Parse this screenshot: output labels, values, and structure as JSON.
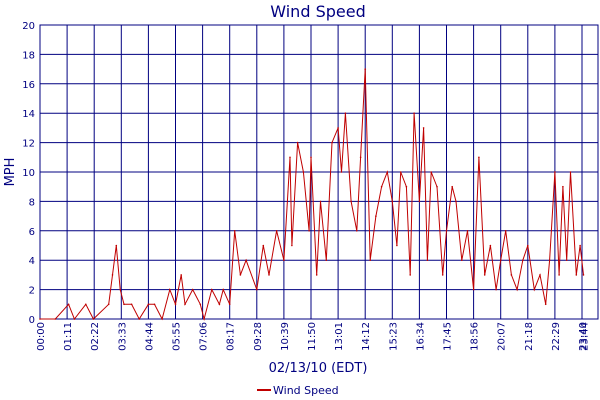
{
  "chart_data": {
    "type": "line",
    "title": "Wind Speed",
    "xlabel": "02/13/10 (EDT)",
    "ylabel": "MPH",
    "x_ticks": [
      "00:00",
      "01:11",
      "02:22",
      "03:33",
      "04:44",
      "05:55",
      "07:06",
      "08:17",
      "09:28",
      "10:39",
      "11:50",
      "13:01",
      "14:12",
      "15:23",
      "16:34",
      "17:45",
      "18:56",
      "20:07",
      "21:18",
      "22:29",
      "23:40",
      "23:44"
    ],
    "y_ticks": [
      0,
      2,
      4,
      6,
      8,
      10,
      12,
      14,
      16,
      18,
      20
    ],
    "xlim": [
      "00:00",
      "23:44"
    ],
    "ylim": [
      0,
      20
    ],
    "grid": true,
    "legend_position": "bottom-center",
    "series": [
      {
        "name": "Wind Speed",
        "color": "#c00000",
        "x": [
          "00:00",
          "00:40",
          "01:15",
          "01:30",
          "02:00",
          "02:20",
          "03:00",
          "03:10",
          "03:20",
          "03:30",
          "03:40",
          "04:00",
          "04:20",
          "04:44",
          "05:00",
          "05:20",
          "05:40",
          "05:55",
          "06:10",
          "06:20",
          "06:40",
          "07:00",
          "07:10",
          "07:30",
          "07:50",
          "08:00",
          "08:17",
          "08:30",
          "08:45",
          "09:00",
          "09:28",
          "09:45",
          "10:00",
          "10:20",
          "10:39",
          "10:55",
          "11:00",
          "11:15",
          "11:30",
          "11:45",
          "11:50",
          "12:05",
          "12:15",
          "12:30",
          "12:45",
          "13:01",
          "13:10",
          "13:20",
          "13:35",
          "13:50",
          "14:00",
          "14:12",
          "14:25",
          "14:40",
          "14:55",
          "15:10",
          "15:23",
          "15:35",
          "15:45",
          "16:00",
          "16:10",
          "16:20",
          "16:34",
          "16:45",
          "16:55",
          "17:05",
          "17:20",
          "17:35",
          "17:45",
          "18:00",
          "18:10",
          "18:25",
          "18:40",
          "18:56",
          "19:10",
          "19:25",
          "19:40",
          "19:55",
          "20:07",
          "20:20",
          "20:35",
          "20:50",
          "21:05",
          "21:18",
          "21:35",
          "21:50",
          "22:05",
          "22:15",
          "22:29",
          "22:40",
          "22:50",
          "23:00",
          "23:10",
          "23:25",
          "23:35",
          "23:44"
        ],
        "values": [
          0,
          0,
          1,
          0,
          1,
          0,
          1,
          3,
          5,
          2,
          1,
          1,
          0,
          1,
          1,
          0,
          2,
          1,
          3,
          1,
          2,
          1,
          0,
          2,
          1,
          2,
          1,
          6,
          3,
          4,
          2,
          5,
          3,
          6,
          4,
          11,
          5,
          12,
          10,
          6,
          11,
          3,
          8,
          4,
          12,
          13,
          10,
          14,
          8,
          6,
          11,
          17,
          4,
          7,
          9,
          10,
          8,
          5,
          10,
          9,
          3,
          14,
          8,
          13,
          4,
          10,
          9,
          3,
          6,
          9,
          8,
          4,
          6,
          2,
          11,
          3,
          5,
          2,
          4,
          6,
          3,
          2,
          4,
          5,
          2,
          3,
          1,
          4,
          10,
          3,
          9,
          4,
          10,
          3,
          5,
          3
        ]
      }
    ]
  }
}
